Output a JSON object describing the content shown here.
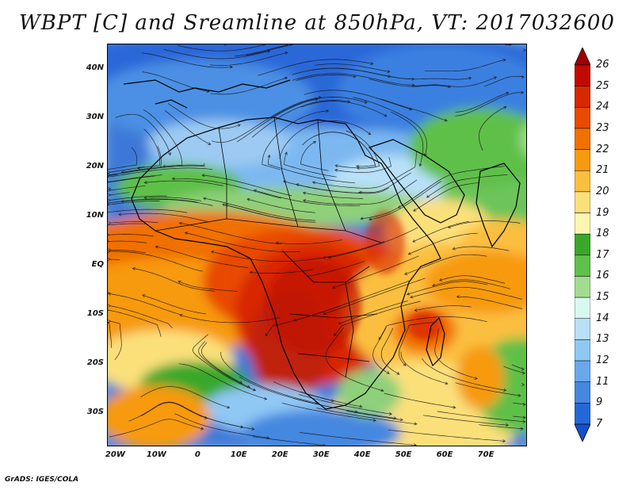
{
  "title": "WBPT [C] and Sreamline at 850hPa, VT: 2017032600",
  "credit": "GrADS: IGES/COLA",
  "latitude_labels": [
    "40N",
    "30N",
    "20N",
    "10N",
    "EQ",
    "10S",
    "20S",
    "30S"
  ],
  "longitude_labels": [
    "20W",
    "10W",
    "0",
    "10E",
    "20E",
    "30E",
    "40E",
    "50E",
    "60E",
    "70E"
  ],
  "map": {
    "field": "WBPT [C]",
    "level": "850hPa",
    "valid_time": "2017032600",
    "overlay": "streamlines",
    "domain_lon": [
      -22,
      80
    ],
    "domain_lat": [
      -37,
      45
    ],
    "lat_ticks": [
      40,
      30,
      20,
      10,
      0,
      -10,
      -20,
      -30
    ],
    "lon_ticks": [
      -20,
      -10,
      0,
      10,
      20,
      30,
      40,
      50,
      60,
      70
    ]
  },
  "colorbar": {
    "labels": [
      "26",
      "25",
      "24",
      "23",
      "22",
      "21",
      "20",
      "19",
      "18",
      "17",
      "16",
      "15",
      "14",
      "13",
      "12",
      "11",
      "9",
      "7"
    ],
    "colors": [
      "#a00000",
      "#c00a00",
      "#d82800",
      "#e84a00",
      "#f07000",
      "#f79a10",
      "#fbbf40",
      "#fbe07a",
      "#fdf5b0",
      "#39a829",
      "#5fc04a",
      "#a2dc90",
      "#d8f8f0",
      "#b8e0f8",
      "#90c8f4",
      "#6aa8ec",
      "#4488e0",
      "#2468d8",
      "#1450c8"
    ]
  }
}
